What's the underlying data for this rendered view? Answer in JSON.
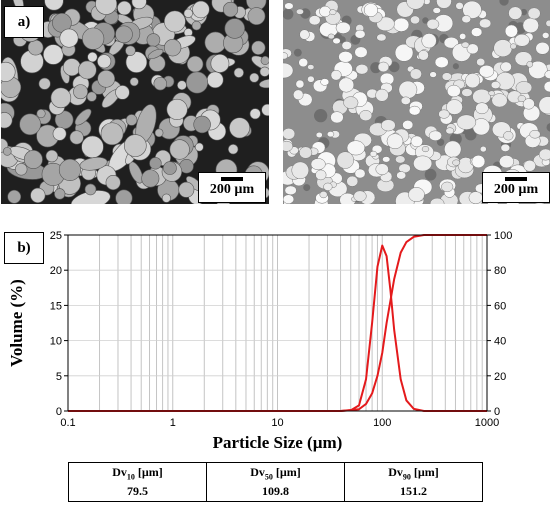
{
  "panel_a": {
    "label": "a)",
    "scalebar_left": "200 µm",
    "scalebar_right": "200 µm"
  },
  "panel_b": {
    "label": "b)"
  },
  "chart_data": {
    "type": "line",
    "xscale": "log",
    "xlabel": "Particle Size (µm)",
    "ylabel": "Volume (%)",
    "xlim": [
      0.1,
      1000
    ],
    "ylim": [
      0,
      25
    ],
    "y2lim": [
      0,
      100
    ],
    "x_tick_labels": [
      "0.1",
      "1",
      "10",
      "100",
      "1000"
    ],
    "y_tick_labels": [
      "0",
      "5",
      "10",
      "15",
      "20",
      "25"
    ],
    "y2_tick_labels": [
      "0",
      "20",
      "40",
      "60",
      "80",
      "100"
    ],
    "grid": true,
    "line_color": "#e41a1c",
    "series": [
      {
        "axis": "left",
        "x": [
          0.1,
          1,
          10,
          40,
          50,
          60,
          70,
          80,
          90,
          100,
          110,
          120,
          130,
          150,
          170,
          200,
          250,
          1000
        ],
        "values": [
          0,
          0,
          0,
          0,
          0.1,
          0.8,
          4.5,
          12.5,
          20.5,
          23.5,
          22,
          17,
          11.5,
          4.5,
          1.5,
          0.3,
          0,
          0
        ]
      },
      {
        "axis": "right",
        "x": [
          0.1,
          1,
          10,
          40,
          60,
          70,
          80,
          90,
          100,
          110,
          120,
          130,
          150,
          170,
          200,
          250,
          1000
        ],
        "values": [
          0,
          0,
          0,
          0,
          1,
          4,
          10,
          20,
          33,
          50,
          63,
          75,
          90,
          96,
          99,
          100,
          100
        ]
      }
    ]
  },
  "stats": [
    {
      "base": "Dv",
      "sub": "10",
      "unit": " [µm]",
      "value": "79.5"
    },
    {
      "base": "Dv",
      "sub": "50",
      "unit": " [µm]",
      "value": "109.8"
    },
    {
      "base": "Dv",
      "sub": "90",
      "unit": " [µm]",
      "value": "151.2"
    }
  ]
}
